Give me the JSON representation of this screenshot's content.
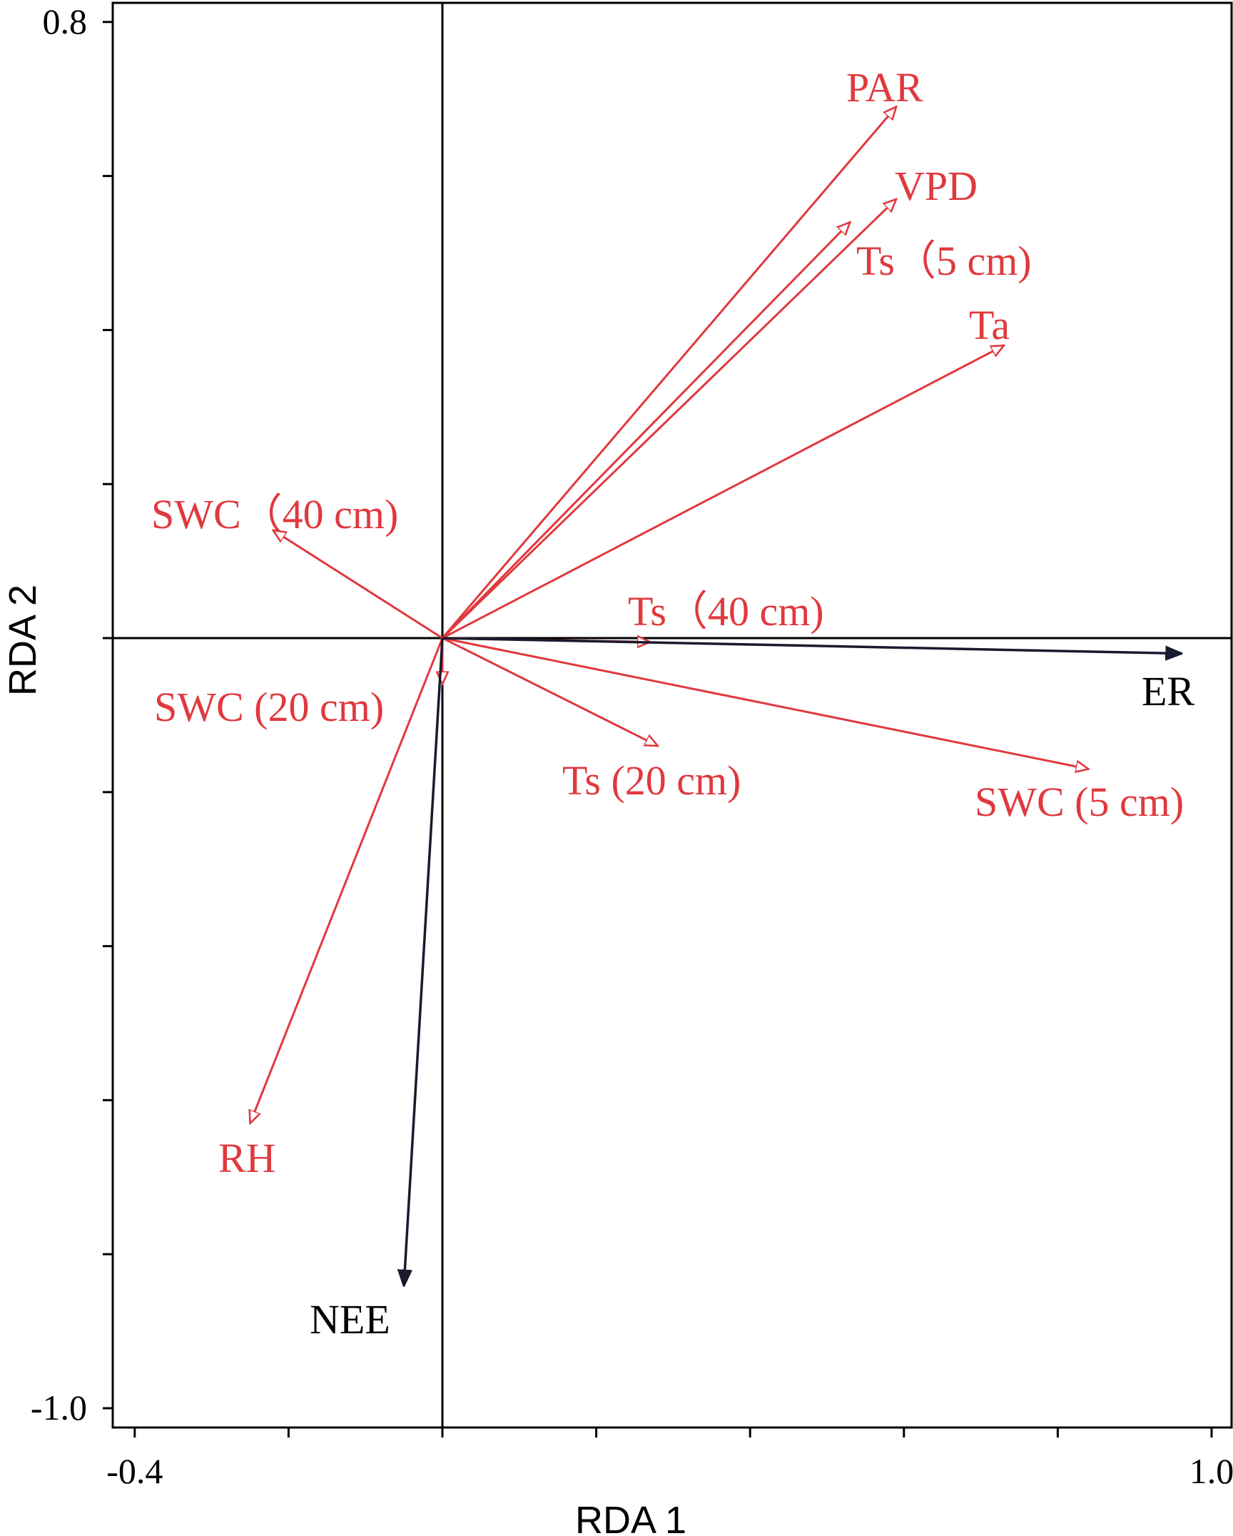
{
  "chart_data": {
    "type": "scatter",
    "subtype": "rda-biplot",
    "title": "",
    "xlabel": "RDA 1",
    "ylabel": "RDA 2",
    "xlim": [
      -0.43,
      1.03
    ],
    "ylim": [
      -1.03,
      0.82
    ],
    "x_tick_labels": [
      {
        "value": -0.4,
        "label": "-0.4"
      },
      {
        "value": 1.0,
        "label": "1.0"
      }
    ],
    "x_minor_ticks": [
      -0.4,
      -0.2,
      0.0,
      0.2,
      0.4,
      0.6,
      0.8,
      1.0
    ],
    "y_tick_labels": [
      {
        "value": 0.8,
        "label": "0.8"
      },
      {
        "value": -1.0,
        "label": "-1.0"
      }
    ],
    "y_minor_ticks": [
      0.8,
      0.6,
      0.4,
      0.2,
      0.0,
      -0.2,
      -0.4,
      -0.6,
      -0.8,
      -1.0
    ],
    "grid": false,
    "legend": "none",
    "colors": {
      "explanatory": "#e0393e",
      "response": "#1a1a2e"
    },
    "response_vectors": [
      {
        "name": "ER",
        "x": 0.96,
        "y": -0.02
      },
      {
        "name": "NEE",
        "x": -0.05,
        "y": -0.84
      }
    ],
    "explanatory_vectors": [
      {
        "name": "PAR",
        "x": 0.59,
        "y": 0.69
      },
      {
        "name": "VPD",
        "x": 0.59,
        "y": 0.57
      },
      {
        "name": "Ts（5 cm)",
        "x": 0.53,
        "y": 0.54
      },
      {
        "name": "Ta",
        "x": 0.73,
        "y": 0.38
      },
      {
        "name": "SWC（40 cm)",
        "x": -0.22,
        "y": 0.14
      },
      {
        "name": "Ts（40 cm)",
        "x": 0.27,
        "y": -0.005
      },
      {
        "name": "SWC (20 cm)",
        "x": 0.0,
        "y": -0.06
      },
      {
        "name": "Ts (20 cm)",
        "x": 0.28,
        "y": -0.14
      },
      {
        "name": "SWC (5 cm)",
        "x": 0.84,
        "y": -0.17
      },
      {
        "name": "RH",
        "x": -0.25,
        "y": -0.63
      }
    ]
  }
}
